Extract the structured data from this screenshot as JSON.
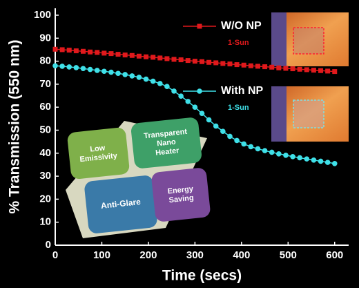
{
  "chart_data": {
    "type": "line",
    "xlabel": "Time (secs)",
    "ylabel": "% Transmission (550 nm)",
    "x": [
      0,
      15,
      30,
      45,
      60,
      75,
      90,
      105,
      120,
      135,
      150,
      165,
      180,
      195,
      210,
      225,
      240,
      255,
      270,
      285,
      300,
      315,
      330,
      345,
      360,
      375,
      390,
      405,
      420,
      435,
      450,
      465,
      480,
      495,
      510,
      525,
      540,
      555,
      570,
      585,
      600
    ],
    "series": [
      {
        "name": "W/O NP",
        "color": "#e0191c",
        "marker": "square",
        "annotation": "1-Sun",
        "values": [
          85.2,
          85.0,
          84.8,
          84.5,
          84.3,
          84.0,
          83.8,
          83.5,
          83.3,
          83.0,
          82.7,
          82.5,
          82.2,
          81.9,
          81.7,
          81.4,
          81.1,
          80.8,
          80.6,
          80.3,
          80.0,
          79.8,
          79.5,
          79.3,
          79.0,
          78.8,
          78.5,
          78.3,
          78.0,
          77.8,
          77.6,
          77.4,
          77.1,
          76.9,
          76.7,
          76.5,
          76.3,
          76.1,
          75.9,
          75.7,
          75.5
        ]
      },
      {
        "name": "With NP",
        "color": "#3fe0e8",
        "marker": "circle",
        "annotation": "1-Sun",
        "values": [
          78.0,
          77.8,
          77.5,
          77.2,
          76.8,
          76.4,
          76.0,
          75.6,
          75.2,
          74.7,
          74.2,
          73.6,
          73.0,
          72.2,
          71.3,
          70.3,
          69.0,
          67.0,
          64.8,
          62.5,
          60.0,
          57.3,
          54.5,
          51.8,
          49.5,
          47.3,
          45.5,
          44.0,
          42.8,
          41.9,
          41.1,
          40.4,
          39.7,
          39.1,
          38.5,
          38.0,
          37.5,
          37.0,
          36.5,
          36.0,
          35.5
        ]
      }
    ],
    "xlim": [
      0,
      630
    ],
    "xticks": [
      0,
      100,
      200,
      300,
      400,
      500,
      600
    ],
    "ylim": [
      0,
      103
    ],
    "yticks": [
      0,
      10,
      20,
      30,
      40,
      50,
      60,
      70,
      80,
      90,
      100
    ],
    "inset_labels": [
      "Low Emissivity",
      "Transparent Nano Heater",
      "Anti-Glare",
      "Energy Saving"
    ]
  }
}
